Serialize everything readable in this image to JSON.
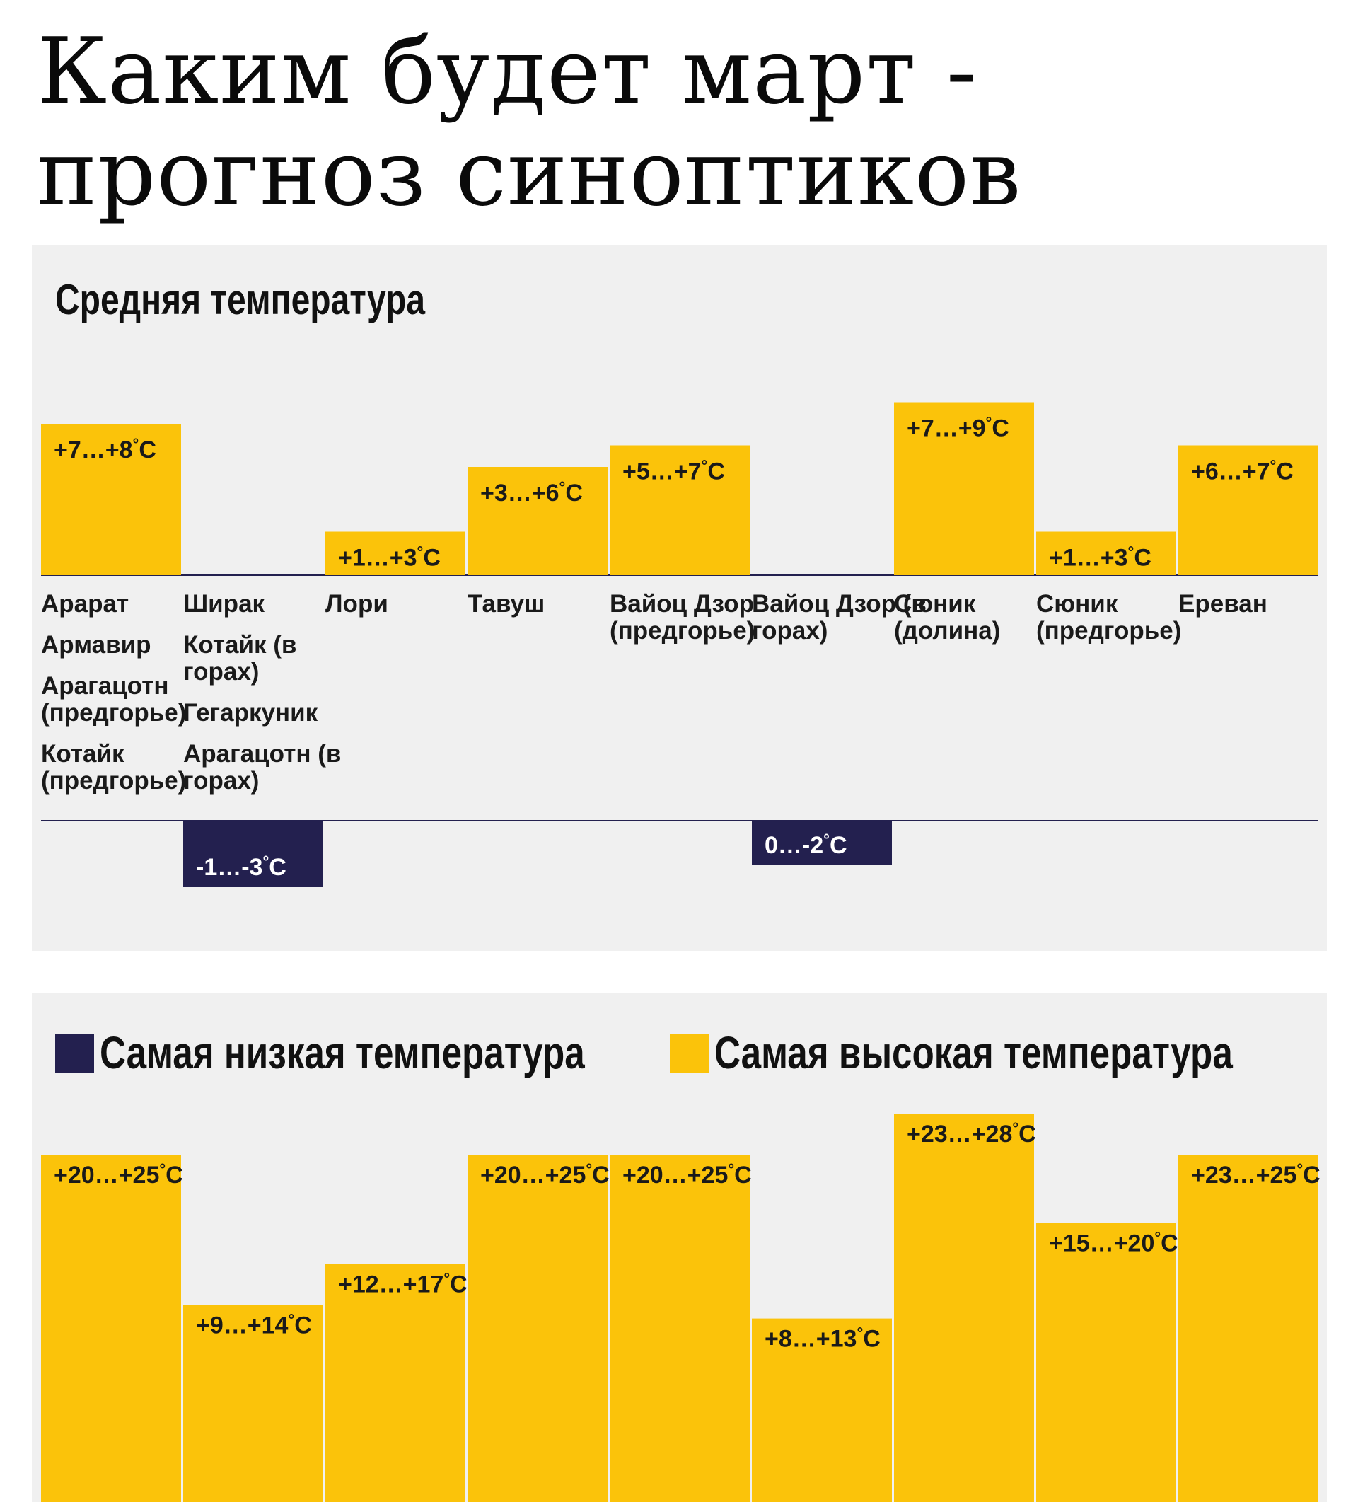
{
  "title": "Каким будет март - прогноз синоптиков",
  "colors": {
    "warm": "#FBC30A",
    "cold": "#23204F",
    "panel_bg": "#F0F0F0"
  },
  "chart_data": [
    {
      "type": "bar",
      "title": "Средняя температура",
      "unit": "°C",
      "categories": [
        [
          "Арарат",
          "Армавир",
          "Арагацотн (предгорье)",
          "Котайк (предгорье)"
        ],
        [
          "Ширак",
          "Котайк (в горах)",
          "Гегаркуник",
          "Арагацотн (в горах)"
        ],
        [
          "Лори"
        ],
        [
          "Тавуш"
        ],
        [
          "Вайоц Дзор (предгорье)"
        ],
        [
          "Вайоц Дзор (в горах)"
        ],
        [
          "Сюник (долина)"
        ],
        [
          "Сюник (предгорье)"
        ],
        [
          "Ереван"
        ]
      ],
      "ranges": [
        [
          7,
          8
        ],
        [
          -1,
          -3
        ],
        [
          1,
          3
        ],
        [
          3,
          6
        ],
        [
          5,
          7
        ],
        [
          0,
          -2
        ],
        [
          7,
          9
        ],
        [
          1,
          3
        ],
        [
          6,
          7
        ]
      ],
      "value_labels": [
        "+7…+8",
        "-1…-3",
        "+1…+3",
        "+3…+6",
        "+5…+7",
        "0…-2",
        "+7…+9",
        "+1…+3",
        "+6…+7"
      ]
    },
    {
      "type": "bar",
      "legend": [
        "Самая низкая температура",
        "Самая высокая температура"
      ],
      "unit": "°C",
      "series": [
        {
          "name": "Самая высокая температура",
          "ranges": [
            [
              20,
              25
            ],
            [
              9,
              14
            ],
            [
              12,
              17
            ],
            [
              20,
              25
            ],
            [
              20,
              25
            ],
            [
              8,
              13
            ],
            [
              23,
              28
            ],
            [
              15,
              20
            ],
            [
              23,
              25
            ]
          ],
          "value_labels": [
            "+20…+25",
            "+9…+14",
            "+12…+17",
            "+20…+25",
            "+20…+25",
            "+8…+13",
            "+23…+28",
            "+15…+20",
            "+23…+25"
          ]
        }
      ]
    }
  ]
}
